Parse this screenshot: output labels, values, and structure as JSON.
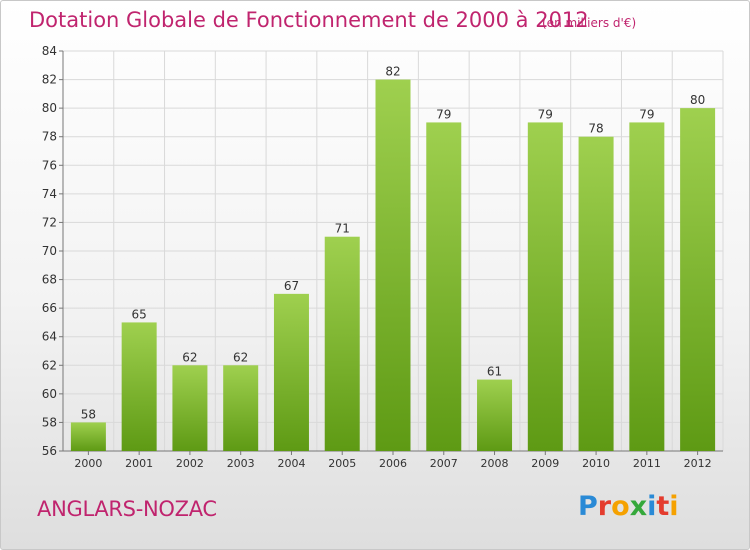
{
  "header": {
    "title": "Dotation Globale de Fonctionnement de 2000 à 2012",
    "subtitle": "(en milliers d'€)"
  },
  "footer": {
    "commune": "ANGLARS-NOZAC",
    "logo_text": "Proxiti",
    "logo_colors": [
      "#2a8ad6",
      "#e43c2e",
      "#f5a100",
      "#35a83b",
      "#2a8ad6",
      "#e43c2e",
      "#f5a100"
    ]
  },
  "colors": {
    "title": "#c0246e",
    "bar_top": "#9fd04f",
    "bar_bottom": "#5e9a14",
    "grid": "#d9d9d9"
  },
  "chart_data": {
    "type": "bar",
    "categories": [
      "2000",
      "2001",
      "2002",
      "2003",
      "2004",
      "2005",
      "2006",
      "2007",
      "2008",
      "2009",
      "2010",
      "2011",
      "2012"
    ],
    "values": [
      58,
      65,
      62,
      62,
      67,
      71,
      82,
      79,
      61,
      79,
      78,
      79,
      80
    ],
    "title": "Dotation Globale de Fonctionnement de 2000 à 2012",
    "subtitle": "(en milliers d'€)",
    "ylim": [
      56,
      84
    ],
    "yticks": [
      56,
      58,
      60,
      62,
      64,
      66,
      68,
      70,
      72,
      74,
      76,
      78,
      80,
      82,
      84
    ],
    "grid": true,
    "data_labels": true
  }
}
